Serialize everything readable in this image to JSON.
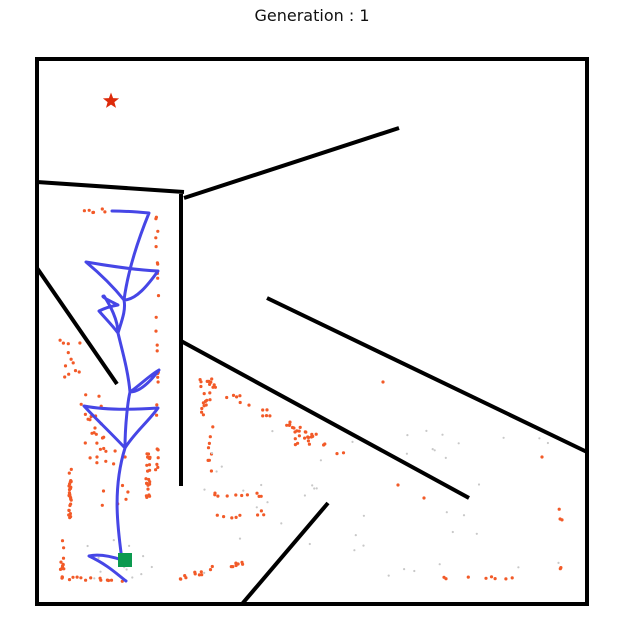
{
  "header": {
    "title": "Generation : 1"
  },
  "colors": {
    "wall": "#000000",
    "goal": "#dd2a0a",
    "start": "#0c9a50",
    "trajectory": "#4646e6",
    "samples": "#f25a28",
    "faint_samples": "#c8c8c8"
  },
  "maze": {
    "goal_icon": "star-icon",
    "start_icon": "square-icon"
  }
}
